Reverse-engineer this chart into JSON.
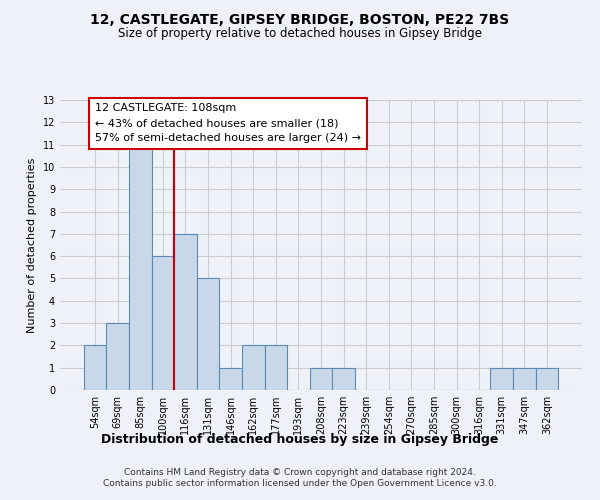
{
  "title1": "12, CASTLEGATE, GIPSEY BRIDGE, BOSTON, PE22 7BS",
  "title2": "Size of property relative to detached houses in Gipsey Bridge",
  "xlabel": "Distribution of detached houses by size in Gipsey Bridge",
  "ylabel": "Number of detached properties",
  "footer": "Contains HM Land Registry data © Crown copyright and database right 2024.\nContains public sector information licensed under the Open Government Licence v3.0.",
  "categories": [
    "54sqm",
    "69sqm",
    "85sqm",
    "100sqm",
    "116sqm",
    "131sqm",
    "146sqm",
    "162sqm",
    "177sqm",
    "193sqm",
    "208sqm",
    "223sqm",
    "239sqm",
    "254sqm",
    "270sqm",
    "285sqm",
    "300sqm",
    "316sqm",
    "331sqm",
    "347sqm",
    "362sqm"
  ],
  "values": [
    2,
    3,
    11,
    6,
    7,
    5,
    1,
    2,
    2,
    0,
    1,
    1,
    0,
    0,
    0,
    0,
    0,
    0,
    1,
    1,
    1
  ],
  "bar_color": "#c8d8e8",
  "bar_edge_color": "#5a8ab5",
  "vline_x": 3.5,
  "annotation_title": "12 CASTLEGATE: 108sqm",
  "annotation_line1": "← 43% of detached houses are smaller (18)",
  "annotation_line2": "57% of semi-detached houses are larger (24) →",
  "annotation_box_color": "#ffffff",
  "annotation_box_edge": "#cc0000",
  "vline_color": "#cc0000",
  "ylim": [
    0,
    13
  ],
  "yticks": [
    0,
    1,
    2,
    3,
    4,
    5,
    6,
    7,
    8,
    9,
    10,
    11,
    12,
    13
  ],
  "grid_color": "#cccccc",
  "background_color": "#eef2f8"
}
